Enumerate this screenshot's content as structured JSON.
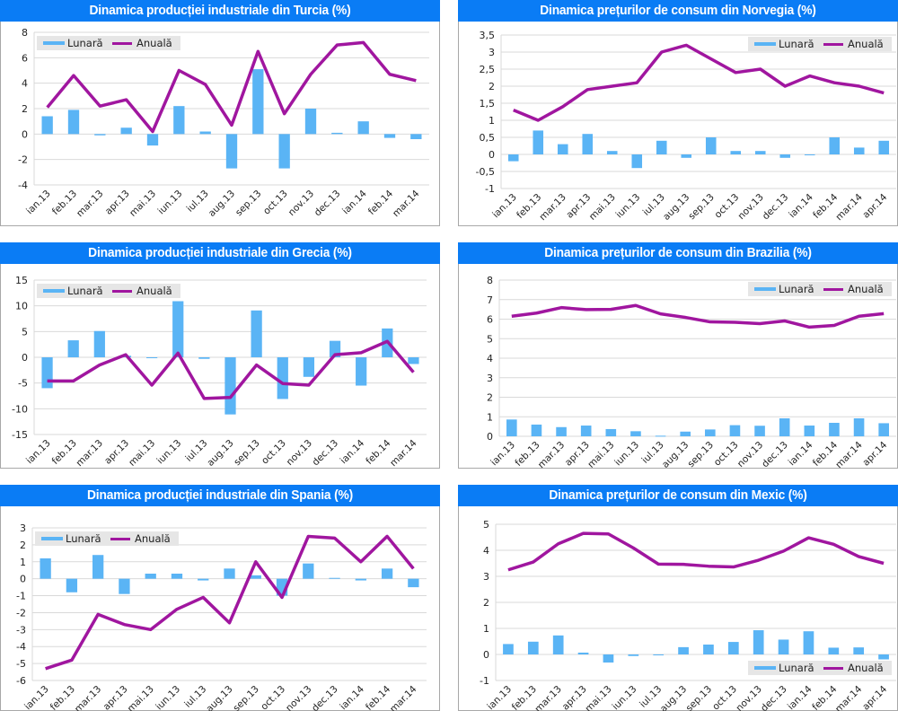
{
  "chart_data": [
    {
      "type": "bar+line",
      "title": "Dinamica producției industriale din Turcia (%)",
      "categories": [
        "ian.13",
        "feb.13",
        "mar.13",
        "apr.13",
        "mai.13",
        "iun.13",
        "iul.13",
        "aug.13",
        "sep.13",
        "oct.13",
        "nov.13",
        "dec.13",
        "ian.14",
        "feb.14",
        "mar.14"
      ],
      "series": [
        {
          "name": "Lunară",
          "kind": "bar",
          "values": [
            1.4,
            1.9,
            -0.1,
            0.5,
            -0.9,
            2.2,
            0.2,
            -2.7,
            5.1,
            -2.7,
            2.0,
            0.1,
            1.0,
            -0.3,
            -0.4
          ]
        },
        {
          "name": "Anuală",
          "kind": "line",
          "values": [
            2.1,
            4.6,
            2.2,
            2.7,
            0.2,
            5.0,
            3.9,
            0.7,
            6.5,
            1.6,
            4.7,
            7.0,
            7.2,
            4.7,
            4.2
          ]
        }
      ],
      "yticks": [
        "8",
        "6",
        "4",
        "2",
        "0",
        "-2",
        "-4"
      ],
      "ylim": [
        -4,
        8
      ],
      "ystep": 2,
      "legend": "top-left",
      "grid": true
    },
    {
      "type": "bar+line",
      "title": "Dinamica prețurilor de consum din Norvegia (%)",
      "categories": [
        "ian.13",
        "feb.13",
        "mar.13",
        "apr.13",
        "mai.13",
        "iun.13",
        "iul.13",
        "aug.13",
        "sep.13",
        "oct.13",
        "nov.13",
        "dec.13",
        "ian.14",
        "feb.14",
        "mar.14",
        "apr.14"
      ],
      "series": [
        {
          "name": "Lunară",
          "kind": "bar",
          "values": [
            -0.2,
            0.7,
            0.3,
            0.6,
            0.1,
            -0.4,
            0.4,
            -0.1,
            0.5,
            0.1,
            0.1,
            -0.1,
            0.0,
            0.5,
            0.2,
            0.4
          ]
        },
        {
          "name": "Anuală",
          "kind": "line",
          "values": [
            1.3,
            1.0,
            1.4,
            1.9,
            2.0,
            2.1,
            3.0,
            3.2,
            2.8,
            2.4,
            2.5,
            2.0,
            2.3,
            2.1,
            2.0,
            1.8
          ]
        }
      ],
      "yticks": [
        "3,5",
        "3",
        "2,5",
        "2",
        "1,5",
        "1",
        "0,5",
        "0",
        "-0,5",
        "-1"
      ],
      "ylim": [
        -1,
        3.5
      ],
      "ystep": 0.5,
      "legend": "top-right",
      "grid": true
    },
    {
      "type": "bar+line",
      "title": "Dinamica producției industriale din Grecia (%)",
      "categories": [
        "ian.13",
        "feb.13",
        "mar.13",
        "apr.13",
        "mai.13",
        "iun.13",
        "iul.13",
        "aug.13",
        "sep.13",
        "oct.13",
        "nov.13",
        "dec.13",
        "ian.14",
        "feb.14",
        "mar.14"
      ],
      "series": [
        {
          "name": "Lunară",
          "kind": "bar",
          "values": [
            -6.0,
            3.3,
            5.1,
            0.3,
            0.0,
            10.9,
            -0.3,
            -11.1,
            9.1,
            -8.1,
            -3.8,
            3.2,
            -5.5,
            5.6,
            -1.3
          ]
        },
        {
          "name": "Anuală",
          "kind": "line",
          "values": [
            -4.6,
            -4.6,
            -1.5,
            0.5,
            -5.4,
            0.8,
            -8.0,
            -7.8,
            -1.5,
            -5.1,
            -5.4,
            0.5,
            0.9,
            3.1,
            -2.9
          ]
        }
      ],
      "yticks": [
        "15",
        "10",
        "5",
        "0",
        "-5",
        "-10",
        "-15"
      ],
      "ylim": [
        -15,
        15
      ],
      "ystep": 5,
      "legend": "top-left",
      "grid": true
    },
    {
      "type": "bar+line",
      "title": "Dinamica prețurilor de consum din Brazilia (%)",
      "categories": [
        "ian.13",
        "feb.13",
        "mar.13",
        "apr.13",
        "mai.13",
        "iun.13",
        "iul.13",
        "aug.13",
        "sep.13",
        "oct.13",
        "nov.13",
        "dec.13",
        "ian.14",
        "feb.14",
        "mar.14",
        "apr.14"
      ],
      "series": [
        {
          "name": "Lunară",
          "kind": "bar",
          "values": [
            0.86,
            0.6,
            0.47,
            0.55,
            0.37,
            0.26,
            0.03,
            0.24,
            0.35,
            0.57,
            0.54,
            0.92,
            0.55,
            0.69,
            0.92,
            0.67
          ]
        },
        {
          "name": "Anuală",
          "kind": "line",
          "values": [
            6.15,
            6.31,
            6.59,
            6.49,
            6.5,
            6.7,
            6.27,
            6.09,
            5.86,
            5.84,
            5.77,
            5.91,
            5.59,
            5.68,
            6.15,
            6.28
          ]
        }
      ],
      "yticks": [
        "8",
        "7",
        "6",
        "5",
        "4",
        "3",
        "2",
        "1",
        "0"
      ],
      "ylim": [
        0,
        8
      ],
      "ystep": 1,
      "legend": "top-right",
      "grid": true
    },
    {
      "type": "bar+line",
      "title": "Dinamica producției industriale din Spania (%)",
      "categories": [
        "ian.13",
        "feb.13",
        "mar.13",
        "apr.13",
        "mai.13",
        "iun.13",
        "iul.13",
        "aug.13",
        "sep.13",
        "oct.13",
        "nov.13",
        "dec.13",
        "ian.14",
        "feb.14",
        "mar.14"
      ],
      "series": [
        {
          "name": "Lunară",
          "kind": "bar",
          "values": [
            1.2,
            -0.8,
            1.4,
            -0.9,
            0.3,
            0.3,
            -0.1,
            0.6,
            0.2,
            -1.0,
            0.9,
            0.05,
            -0.1,
            0.6,
            -0.5
          ]
        },
        {
          "name": "Anuală",
          "kind": "line",
          "values": [
            -5.3,
            -4.8,
            -2.1,
            -2.7,
            -3.0,
            -1.8,
            -1.1,
            -2.6,
            1.0,
            -1.1,
            2.5,
            2.4,
            1.0,
            2.5,
            0.6
          ]
        }
      ],
      "yticks": [
        "3",
        "2",
        "1",
        "0",
        "-1",
        "-2",
        "-3",
        "-4",
        "-5",
        "-6"
      ],
      "ylim": [
        -6,
        3
      ],
      "ystep": 1,
      "legend": "top-left",
      "grid": true
    },
    {
      "type": "bar+line",
      "title": "Dinamica prețurilor de consum din Mexic (%)",
      "categories": [
        "ian.13",
        "feb.13",
        "mar.13",
        "apr.13",
        "mai.13",
        "iun.13",
        "iul.13",
        "aug.13",
        "sep.13",
        "oct.13",
        "nov.13",
        "dec.13",
        "ian.14",
        "feb.14",
        "mar.14",
        "apr.14"
      ],
      "series": [
        {
          "name": "Lunară",
          "kind": "bar",
          "values": [
            0.4,
            0.49,
            0.73,
            0.07,
            -0.31,
            -0.06,
            -0.03,
            0.28,
            0.38,
            0.48,
            0.93,
            0.57,
            0.89,
            0.26,
            0.27,
            -0.19
          ]
        },
        {
          "name": "Anuală",
          "kind": "line",
          "values": [
            3.25,
            3.55,
            4.25,
            4.65,
            4.63,
            4.09,
            3.47,
            3.46,
            3.39,
            3.36,
            3.62,
            3.97,
            4.48,
            4.23,
            3.76,
            3.5
          ]
        }
      ],
      "yticks": [
        "5",
        "4",
        "3",
        "2",
        "1",
        "0",
        "-1"
      ],
      "ylim": [
        -1,
        5
      ],
      "ystep": 1,
      "legend": "bottom-right",
      "grid": true
    }
  ],
  "colors": {
    "bar": "#5ab4f5",
    "line": "#a0169f",
    "title_bg": "#0a7cf5",
    "title_text": "#ffffff",
    "grid": "#d9d9d9",
    "legend_bg": "#e6e6e6"
  }
}
